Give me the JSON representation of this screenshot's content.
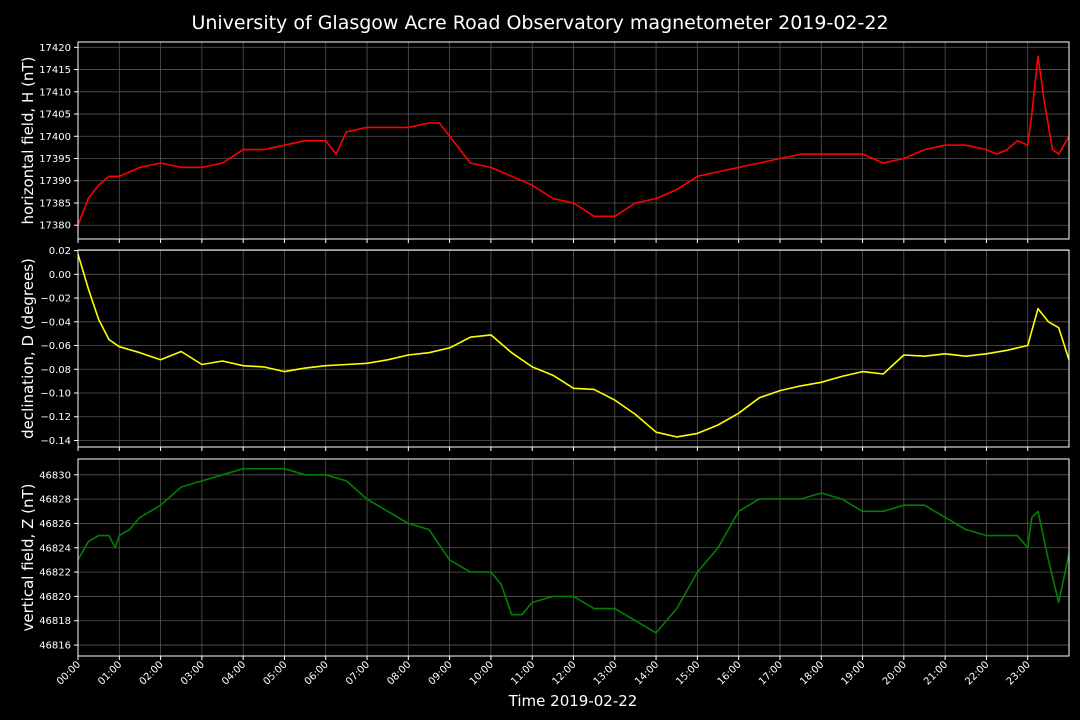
{
  "title": "University of Glasgow Acre Road Observatory magnetometer 2019-02-22",
  "colors": {
    "background": "#000000",
    "text": "#ffffff",
    "grid": "#555555"
  },
  "chart_data": [
    {
      "type": "line",
      "ylabel": "horizontal field, H (nT)",
      "color": "#ff0000",
      "ylim": [
        17376.9,
        17421.2
      ],
      "yticks": [
        17380,
        17385,
        17390,
        17395,
        17400,
        17405,
        17410,
        17415,
        17420
      ],
      "grid": true,
      "series": [
        {
          "x": [
            0,
            0.25,
            0.5,
            0.75,
            1,
            1.25,
            1.5,
            2,
            2.5,
            3,
            3.5,
            4,
            4.5,
            5,
            5.5,
            6,
            6.25,
            6.5,
            7,
            7.5,
            8,
            8.5,
            8.75,
            9,
            9.5,
            10,
            10.5,
            11,
            11.5,
            12,
            12.5,
            13,
            13.5,
            14,
            14.5,
            15,
            15.5,
            16,
            16.5,
            17,
            17.5,
            18,
            18.5,
            19,
            19.5,
            20,
            20.5,
            21,
            21.5,
            22,
            22.25,
            22.5,
            22.75,
            23,
            23.1,
            23.25,
            23.4,
            23.6,
            23.75,
            24
          ],
          "y": [
            17380,
            17386,
            17389,
            17391,
            17391,
            17392,
            17393,
            17394,
            17393,
            17393,
            17394,
            17397,
            17397,
            17398,
            17399,
            17399,
            17396,
            17401,
            17402,
            17402,
            17402,
            17403,
            17403,
            17400,
            17394,
            17393,
            17391,
            17389,
            17386,
            17385,
            17382,
            17382,
            17385,
            17386,
            17388,
            17391,
            17392,
            17393,
            17394,
            17395,
            17396,
            17396,
            17396,
            17396,
            17394,
            17395,
            17397,
            17398,
            17398,
            17397,
            17396,
            17397,
            17399,
            17398,
            17405,
            17418,
            17408,
            17397,
            17396,
            17400
          ]
        }
      ]
    },
    {
      "type": "line",
      "ylabel": "declination, D (degrees)",
      "color": "#ffff00",
      "ylim": [
        -0.1455,
        0.0205
      ],
      "yticks": [
        0.02,
        0.0,
        -0.02,
        -0.04,
        -0.06,
        -0.08,
        -0.1,
        -0.12,
        -0.14
      ],
      "ytick_labels": [
        "0.02",
        "0.00",
        "−0.02",
        "−0.04",
        "−0.06",
        "−0.08",
        "−0.10",
        "−0.12",
        "−0.14"
      ],
      "grid": true,
      "series": [
        {
          "x": [
            0,
            0.25,
            0.5,
            0.75,
            1,
            1.5,
            2,
            2.5,
            3,
            3.5,
            4,
            4.5,
            5,
            5.5,
            6,
            6.5,
            7,
            7.5,
            8,
            8.5,
            9,
            9.5,
            10,
            10.5,
            11,
            11.5,
            12,
            12.5,
            13,
            13.5,
            14,
            14.5,
            15,
            15.5,
            16,
            16.5,
            17,
            17.5,
            18,
            18.5,
            19,
            19.5,
            20,
            20.5,
            21,
            21.5,
            22,
            22.5,
            23,
            23.25,
            23.5,
            23.75,
            24
          ],
          "y": [
            0.017,
            -0.012,
            -0.038,
            -0.055,
            -0.061,
            -0.066,
            -0.072,
            -0.065,
            -0.076,
            -0.073,
            -0.077,
            -0.078,
            -0.082,
            -0.079,
            -0.077,
            -0.076,
            -0.075,
            -0.072,
            -0.068,
            -0.066,
            -0.062,
            -0.053,
            -0.051,
            -0.066,
            -0.078,
            -0.085,
            -0.096,
            -0.097,
            -0.106,
            -0.118,
            -0.133,
            -0.137,
            -0.134,
            -0.127,
            -0.117,
            -0.104,
            -0.098,
            -0.094,
            -0.091,
            -0.086,
            -0.082,
            -0.084,
            -0.068,
            -0.069,
            -0.067,
            -0.069,
            -0.067,
            -0.064,
            -0.06,
            -0.029,
            -0.04,
            -0.045,
            -0.072
          ]
        }
      ]
    },
    {
      "type": "line",
      "ylabel": "vertical field, Z (nT)",
      "color": "#008000",
      "ylim": [
        46815.1,
        46831.3
      ],
      "yticks": [
        46816,
        46818,
        46820,
        46822,
        46824,
        46826,
        46828,
        46830
      ],
      "grid": true,
      "series": [
        {
          "x": [
            0,
            0.25,
            0.5,
            0.75,
            0.9,
            1,
            1.25,
            1.5,
            2,
            2.5,
            3,
            3.5,
            4,
            4.5,
            5,
            5.5,
            6,
            6.5,
            7,
            7.5,
            8,
            8.5,
            9,
            9.5,
            10,
            10.25,
            10.5,
            10.75,
            11,
            11.5,
            12,
            12.5,
            13,
            13.5,
            14,
            14.5,
            15,
            15.5,
            16,
            16.5,
            17,
            17.5,
            18,
            18.5,
            19,
            19.5,
            20,
            20.5,
            21,
            21.5,
            22,
            22.5,
            22.75,
            23,
            23.1,
            23.25,
            23.5,
            23.75,
            24
          ],
          "y": [
            46823,
            46824.5,
            46825,
            46825,
            46824,
            46825,
            46825.5,
            46826.5,
            46827.5,
            46829,
            46829.5,
            46830,
            46830.5,
            46830.5,
            46830.5,
            46830,
            46830,
            46829.5,
            46828,
            46827,
            46826,
            46825.5,
            46823,
            46822,
            46822,
            46821,
            46818.5,
            46818.5,
            46819.5,
            46820,
            46820,
            46819,
            46819,
            46818,
            46817,
            46819,
            46822,
            46824,
            46827,
            46828,
            46828,
            46828,
            46828.5,
            46828,
            46827,
            46827,
            46827.5,
            46827.5,
            46826.5,
            46825.5,
            46825,
            46825,
            46825,
            46824,
            46826.5,
            46827,
            46823,
            46819.5,
            46823.5
          ]
        }
      ]
    }
  ],
  "x_axis": {
    "label": "Time 2019-02-22",
    "xlim": [
      0,
      24
    ],
    "tick_labels": [
      "00:00",
      "01:00",
      "02:00",
      "03:00",
      "04:00",
      "05:00",
      "06:00",
      "07:00",
      "08:00",
      "09:00",
      "10:00",
      "11:00",
      "12:00",
      "13:00",
      "14:00",
      "15:00",
      "16:00",
      "17:00",
      "18:00",
      "19:00",
      "20:00",
      "21:00",
      "22:00",
      "23:00"
    ]
  }
}
